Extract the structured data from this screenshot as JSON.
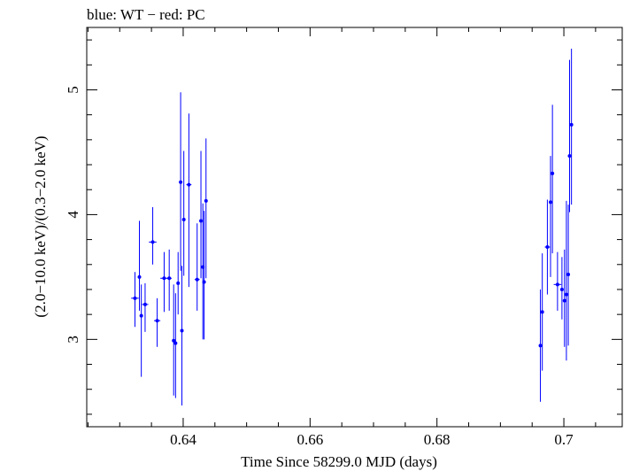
{
  "chart_data": {
    "type": "scatter",
    "title": "blue: WT − red: PC",
    "xlabel": "Time Since 58299.0 MJD (days)",
    "ylabel": "(2.0−10.0 keV)/(0.3−2.0 keV)",
    "xlim": [
      0.6248,
      0.7092
    ],
    "ylim": [
      2.3,
      5.5
    ],
    "x_ticks": [
      0.64,
      0.66,
      0.68,
      0.7
    ],
    "x_tick_labels": [
      "0.64",
      "0.66",
      "0.68",
      "0.7"
    ],
    "y_ticks": [
      3,
      4,
      5
    ],
    "y_tick_labels": [
      "3",
      "4",
      "5"
    ],
    "grid": false,
    "legend": "none",
    "series": [
      {
        "color": "#0000ff",
        "points": [
          {
            "x": 0.6324,
            "y": 3.33,
            "yerr_lo": 0.23,
            "yerr_hi": 0.21,
            "xerr": 0.0006
          },
          {
            "x": 0.6331,
            "y": 3.5,
            "yerr_lo": 0.27,
            "yerr_hi": 0.45
          },
          {
            "x": 0.6334,
            "y": 3.19,
            "yerr_lo": 0.49,
            "yerr_hi": 0.25
          },
          {
            "x": 0.634,
            "y": 3.28,
            "yerr_lo": 0.22,
            "yerr_hi": 0.17,
            "xerr": 0.0005
          },
          {
            "x": 0.6352,
            "y": 3.78,
            "yerr_lo": 0.18,
            "yerr_hi": 0.28,
            "xerr": 0.0006
          },
          {
            "x": 0.6359,
            "y": 3.15,
            "yerr_lo": 0.21,
            "yerr_hi": 0.18,
            "xerr": 0.0005
          },
          {
            "x": 0.637,
            "y": 3.49,
            "yerr_lo": 0.27,
            "yerr_hi": 0.21,
            "xerr": 0.0006
          },
          {
            "x": 0.6378,
            "y": 3.49,
            "yerr_lo": 0.26,
            "yerr_hi": 0.23,
            "xerr": 0.0004
          },
          {
            "x": 0.6385,
            "y": 2.99,
            "yerr_lo": 0.44,
            "yerr_hi": 0.45
          },
          {
            "x": 0.6388,
            "y": 2.97,
            "yerr_lo": 0.44,
            "yerr_hi": 0.4
          },
          {
            "x": 0.6392,
            "y": 3.45,
            "yerr_lo": 0.25,
            "yerr_hi": 0.25
          },
          {
            "x": 0.6396,
            "y": 4.26,
            "yerr_lo": 0.71,
            "yerr_hi": 0.72
          },
          {
            "x": 0.6398,
            "y": 3.07,
            "yerr_lo": 0.6,
            "yerr_hi": 0.52
          },
          {
            "x": 0.6401,
            "y": 3.96,
            "yerr_lo": 0.45,
            "yerr_hi": 0.55
          },
          {
            "x": 0.6409,
            "y": 4.24,
            "yerr_lo": 0.82,
            "yerr_hi": 0.57,
            "xerr": 0.0004
          },
          {
            "x": 0.6422,
            "y": 3.48,
            "yerr_lo": 0.25,
            "yerr_hi": 0.45,
            "xerr": 0.0004
          },
          {
            "x": 0.6428,
            "y": 3.95,
            "yerr_lo": 0.46,
            "yerr_hi": 0.56
          },
          {
            "x": 0.6431,
            "y": 3.58,
            "yerr_lo": 0.58,
            "yerr_hi": 0.51
          },
          {
            "x": 0.6433,
            "y": 3.46,
            "yerr_lo": 0.46,
            "yerr_hi": 0.57
          },
          {
            "x": 0.6436,
            "y": 4.11,
            "yerr_lo": 0.62,
            "yerr_hi": 0.5
          },
          {
            "x": 0.6963,
            "y": 2.95,
            "yerr_lo": 0.45,
            "yerr_hi": 0.45
          },
          {
            "x": 0.6966,
            "y": 3.22,
            "yerr_lo": 0.47,
            "yerr_hi": 0.47
          },
          {
            "x": 0.6974,
            "y": 3.74,
            "yerr_lo": 0.38,
            "yerr_hi": 0.38,
            "xerr": 0.0004
          },
          {
            "x": 0.6979,
            "y": 4.1,
            "yerr_lo": 0.6,
            "yerr_hi": 0.37
          },
          {
            "x": 0.6982,
            "y": 4.33,
            "yerr_lo": 0.64,
            "yerr_hi": 0.55
          },
          {
            "x": 0.699,
            "y": 3.44,
            "yerr_lo": 0.21,
            "yerr_hi": 0.26,
            "xerr": 0.0006
          },
          {
            "x": 0.6997,
            "y": 3.4,
            "yerr_lo": 0.24,
            "yerr_hi": 0.26
          },
          {
            "x": 0.7001,
            "y": 3.31,
            "yerr_lo": 0.37,
            "yerr_hi": 0.41
          },
          {
            "x": 0.7004,
            "y": 3.36,
            "yerr_lo": 0.53,
            "yerr_hi": 0.75
          },
          {
            "x": 0.7007,
            "y": 3.52,
            "yerr_lo": 0.57,
            "yerr_hi": 0.56
          },
          {
            "x": 0.7009,
            "y": 4.47,
            "yerr_lo": 0.45,
            "yerr_hi": 0.77
          },
          {
            "x": 0.7012,
            "y": 4.72,
            "yerr_lo": 0.64,
            "yerr_hi": 0.61
          }
        ]
      }
    ]
  }
}
